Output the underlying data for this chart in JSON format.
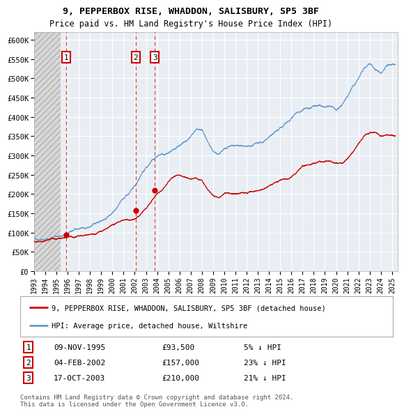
{
  "title_line1": "9, PEPPERBOX RISE, WHADDON, SALISBURY, SP5 3BF",
  "title_line2": "Price paid vs. HM Land Registry's House Price Index (HPI)",
  "legend_red": "9, PEPPERBOX RISE, WHADDON, SALISBURY, SP5 3BF (detached house)",
  "legend_blue": "HPI: Average price, detached house, Wiltshire",
  "footer1": "Contains HM Land Registry data © Crown copyright and database right 2024.",
  "footer2": "This data is licensed under the Open Government Licence v3.0.",
  "transactions": [
    {
      "num": 1,
      "date": "09-NOV-1995",
      "price": 93500,
      "pct": "5% ↓ HPI"
    },
    {
      "num": 2,
      "date": "04-FEB-2002",
      "price": 157000,
      "pct": "23% ↓ HPI"
    },
    {
      "num": 3,
      "date": "17-OCT-2003",
      "price": 210000,
      "pct": "21% ↓ HPI"
    }
  ],
  "transaction_dates_decimal": [
    1995.86,
    2002.09,
    2003.79
  ],
  "transaction_prices": [
    93500,
    157000,
    210000
  ],
  "hatch_end_year": 1995.4,
  "ylim": [
    0,
    620000
  ],
  "yticks": [
    0,
    50000,
    100000,
    150000,
    200000,
    250000,
    300000,
    350000,
    400000,
    450000,
    500000,
    550000,
    600000
  ],
  "xlim_start": 1993.0,
  "xlim_end": 2025.5,
  "xticks": [
    1993,
    1994,
    1995,
    1996,
    1997,
    1998,
    1999,
    2000,
    2001,
    2002,
    2003,
    2004,
    2005,
    2006,
    2007,
    2008,
    2009,
    2010,
    2011,
    2012,
    2013,
    2014,
    2015,
    2016,
    2017,
    2018,
    2019,
    2020,
    2021,
    2022,
    2023,
    2024,
    2025
  ],
  "color_red": "#cc0000",
  "color_blue": "#6699cc",
  "color_bg": "#e8eef4",
  "color_grid": "#ffffff",
  "color_dashed": "#dd4444",
  "hpi_anchors_x": [
    1993.0,
    1995.0,
    1995.5,
    1996.0,
    1997.0,
    1998.0,
    1999.0,
    2000.0,
    2001.0,
    2002.0,
    2002.5,
    2003.0,
    2003.5,
    2004.0,
    2004.5,
    2005.0,
    2005.5,
    2006.0,
    2006.5,
    2007.0,
    2007.5,
    2008.0,
    2008.5,
    2009.0,
    2009.5,
    2010.0,
    2010.5,
    2011.0,
    2011.5,
    2012.0,
    2012.5,
    2013.0,
    2013.5,
    2014.0,
    2014.5,
    2015.0,
    2015.5,
    2016.0,
    2016.5,
    2017.0,
    2017.5,
    2018.0,
    2018.5,
    2019.0,
    2019.5,
    2020.0,
    2020.5,
    2021.0,
    2021.5,
    2022.0,
    2022.5,
    2023.0,
    2023.5,
    2024.0,
    2024.5,
    2025.3
  ],
  "hpi_anchors_y": [
    83000,
    90000,
    92000,
    97000,
    108000,
    118000,
    133000,
    152000,
    180000,
    207000,
    230000,
    248000,
    267000,
    278000,
    285000,
    286000,
    290000,
    295000,
    310000,
    320000,
    335000,
    330000,
    305000,
    278000,
    270000,
    282000,
    292000,
    295000,
    294000,
    292000,
    295000,
    297000,
    304000,
    315000,
    325000,
    336000,
    347000,
    358000,
    368000,
    378000,
    385000,
    390000,
    392000,
    393000,
    394000,
    390000,
    400000,
    420000,
    445000,
    465000,
    490000,
    505000,
    485000,
    476000,
    490000,
    500000
  ],
  "red_anchors_x": [
    1993.0,
    1995.0,
    1995.86,
    1996.5,
    1997.5,
    1998.5,
    1999.5,
    2000.5,
    2001.5,
    2002.09,
    2002.5,
    2003.0,
    2003.79,
    2004.0,
    2004.5,
    2005.0,
    2005.5,
    2006.0,
    2007.0,
    2007.5,
    2008.0,
    2008.5,
    2009.0,
    2009.5,
    2010.0,
    2010.5,
    2011.0,
    2011.5,
    2012.0,
    2012.5,
    2013.0,
    2013.5,
    2014.0,
    2014.5,
    2015.0,
    2015.5,
    2016.0,
    2016.5,
    2017.0,
    2017.5,
    2018.0,
    2018.5,
    2019.0,
    2019.5,
    2020.0,
    2020.5,
    2021.0,
    2021.5,
    2022.0,
    2022.5,
    2023.0,
    2023.5,
    2024.0,
    2024.5,
    2025.3
  ],
  "red_anchors_y": [
    78000,
    90000,
    93500,
    98000,
    107000,
    115000,
    128000,
    145000,
    152000,
    157000,
    168000,
    182000,
    210000,
    218000,
    228000,
    250000,
    262000,
    265000,
    263000,
    265000,
    258000,
    235000,
    218000,
    215000,
    228000,
    232000,
    237000,
    237000,
    235000,
    235000,
    238000,
    243000,
    252000,
    258000,
    265000,
    272000,
    280000,
    292000,
    308000,
    313000,
    317000,
    322000,
    325000,
    328000,
    322000,
    318000,
    330000,
    350000,
    372000,
    390000,
    400000,
    398000,
    388000,
    393000,
    393000
  ]
}
